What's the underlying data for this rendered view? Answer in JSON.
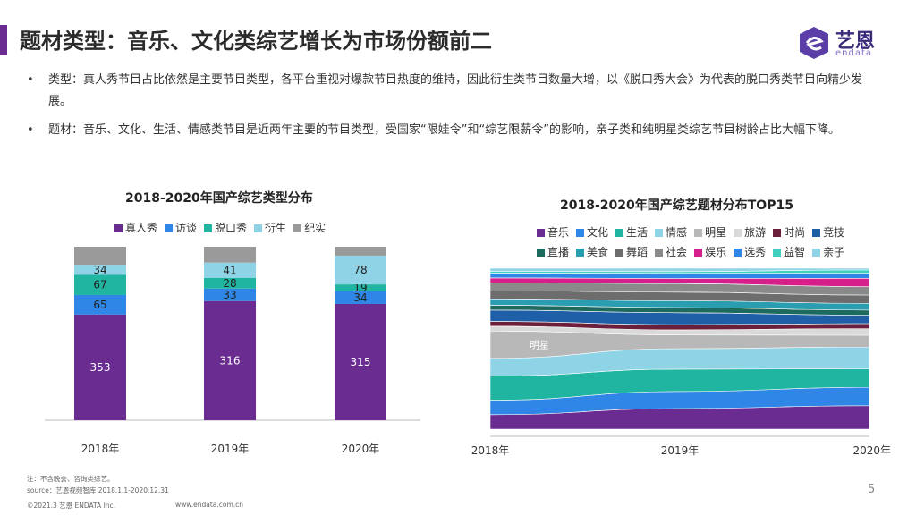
{
  "header": {
    "title": "题材类型：音乐、文化类综艺增长为市场份额前二",
    "logo_text": "艺恩",
    "logo_sub": "endata"
  },
  "bullets": [
    {
      "text": "类型：真人秀节目占比依然是主要节目类型，各平台重视对爆款节目热度的维持，因此衍生类节目数量大增，以《脱口秀大会》为代表的脱口秀类节目向精少发展。"
    },
    {
      "text": "题材：音乐、文化、生活、情感类节目是近两年主要的节目类型，受国家“限娃令”和“综艺限薪令”的影响，亲子类和纯明星类综艺节目树龄占比大幅下降。"
    }
  ],
  "chart_data": [
    {
      "type": "bar",
      "stacked": true,
      "title": "2018-2020年国产综艺类型分布",
      "categories": [
        "2018年",
        "2019年",
        "2020年"
      ],
      "series": [
        {
          "name": "真人秀",
          "color": "#6a2c91",
          "values": [
            353,
            316,
            315
          ]
        },
        {
          "name": "访谈",
          "color": "#2f86e6",
          "values": [
            65,
            33,
            34
          ]
        },
        {
          "name": "脱口秀",
          "color": "#1fb5a0",
          "values": [
            67,
            28,
            19
          ]
        },
        {
          "name": "衍生",
          "color": "#8fd3e6",
          "values": [
            34,
            41,
            78
          ]
        },
        {
          "name": "纪实",
          "color": "#9a9a9a",
          "values": [
            60,
            42,
            24
          ]
        }
      ],
      "data_labels_shown": {
        "真人秀": [
          353,
          316,
          315
        ],
        "访谈": [
          65,
          33,
          34
        ],
        "脱口秀": [
          67,
          28,
          19
        ],
        "衍生": [
          34,
          41,
          78
        ]
      }
    },
    {
      "type": "area",
      "stacked": true,
      "normalized": true,
      "title": "2018-2020年国产综艺题材分布TOP15",
      "x": [
        "2018年",
        "2019年",
        "2020年"
      ],
      "annotation": "明星",
      "series": [
        {
          "name": "音乐",
          "color": "#6a2c91",
          "values": [
            9,
            12,
            14
          ]
        },
        {
          "name": "文化",
          "color": "#2f86e6",
          "values": [
            9,
            10,
            11
          ]
        },
        {
          "name": "生活",
          "color": "#1fb5a0",
          "values": [
            15,
            13,
            11
          ]
        },
        {
          "name": "情感",
          "color": "#8fd3e6",
          "values": [
            11,
            12,
            13
          ]
        },
        {
          "name": "明星",
          "color": "#b8b8b8",
          "values": [
            17,
            8,
            7
          ]
        },
        {
          "name": "旅游",
          "color": "#d9d9d9",
          "values": [
            3,
            3,
            4
          ]
        },
        {
          "name": "时尚",
          "color": "#6b1f3a",
          "values": [
            3,
            3,
            3
          ]
        },
        {
          "name": "竞技",
          "color": "#1f5fa8",
          "values": [
            7,
            7,
            5
          ]
        },
        {
          "name": "直播",
          "color": "#1d6b5e",
          "values": [
            3,
            3,
            3
          ]
        },
        {
          "name": "美食",
          "color": "#2a9db0",
          "values": [
            4,
            4,
            4
          ]
        },
        {
          "name": "舞蹈",
          "color": "#6d6d6d",
          "values": [
            5,
            5,
            5
          ]
        },
        {
          "name": "社会",
          "color": "#8a8a8a",
          "values": [
            5,
            5,
            5
          ]
        },
        {
          "name": "娱乐",
          "color": "#d61f8a",
          "values": [
            3,
            3,
            5
          ]
        },
        {
          "name": "选秀",
          "color": "#2f86e6",
          "values": [
            3,
            3,
            3
          ]
        },
        {
          "name": "益智",
          "color": "#3fd0c0",
          "values": [
            1,
            1,
            2
          ]
        },
        {
          "name": "亲子",
          "color": "#8fd3e6",
          "values": [
            2,
            2,
            1
          ]
        }
      ]
    }
  ],
  "footer": {
    "note": "注：不含晚会、咨询类综艺。",
    "source": "source：艺恩视频智库 2018.1.1-2020.12.31",
    "copyright": "©2021.3 艺恩 ENDATA Inc.",
    "website": "www.endata.com.cn",
    "page": "5"
  }
}
